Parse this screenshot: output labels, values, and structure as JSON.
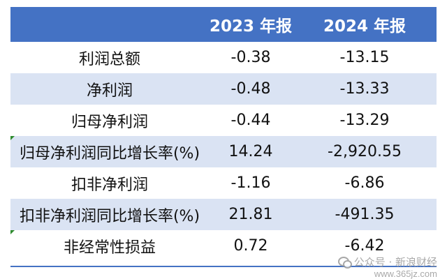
{
  "table": {
    "headers": [
      "",
      "2023 年报",
      "2024 年报"
    ],
    "rows": [
      [
        "利润总额",
        "-0.38",
        "-13.15"
      ],
      [
        "净利润",
        "-0.48",
        "-13.33"
      ],
      [
        "归母净利润",
        "-0.44",
        "-13.29"
      ],
      [
        "归母净利润同比增长率(%)",
        "14.24",
        "-2,920.55"
      ],
      [
        "扣非净利润",
        "-1.16",
        "-6.86"
      ],
      [
        "扣非净利润同比增长率(%)",
        "21.81",
        "-491.35"
      ],
      [
        "非经常性损益",
        "0.72",
        "-6.42"
      ]
    ]
  },
  "watermark": {
    "account": "公众号 · 新浪财经",
    "site": "www.365jz.com"
  },
  "colors": {
    "header_bg": "#4472c4",
    "stripe_bg": "#dae3f3",
    "marker": "#2e8b2e"
  }
}
